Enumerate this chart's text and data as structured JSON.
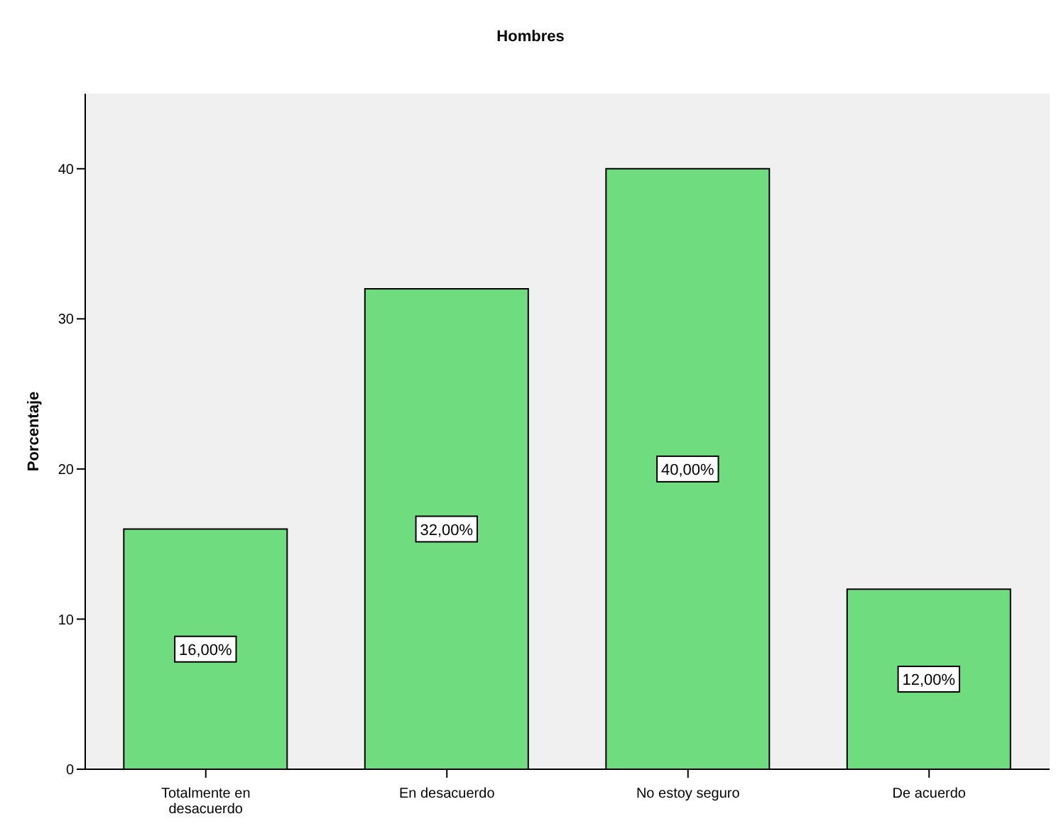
{
  "chart_data": {
    "type": "bar",
    "title": "Hombres",
    "ylabel": "Porcentaje",
    "categories": [
      "Totalmente en desacuerdo",
      "En desacuerdo",
      "No estoy seguro",
      "De acuerdo"
    ],
    "values": [
      16,
      32,
      40,
      12
    ],
    "value_labels": [
      "16,00%",
      "32,00%",
      "40,00%",
      "12,00%"
    ],
    "color": "#6fdc7f",
    "ylim": [
      0,
      45
    ],
    "yticks": [
      0,
      10,
      20,
      30,
      40
    ],
    "grid": false
  }
}
